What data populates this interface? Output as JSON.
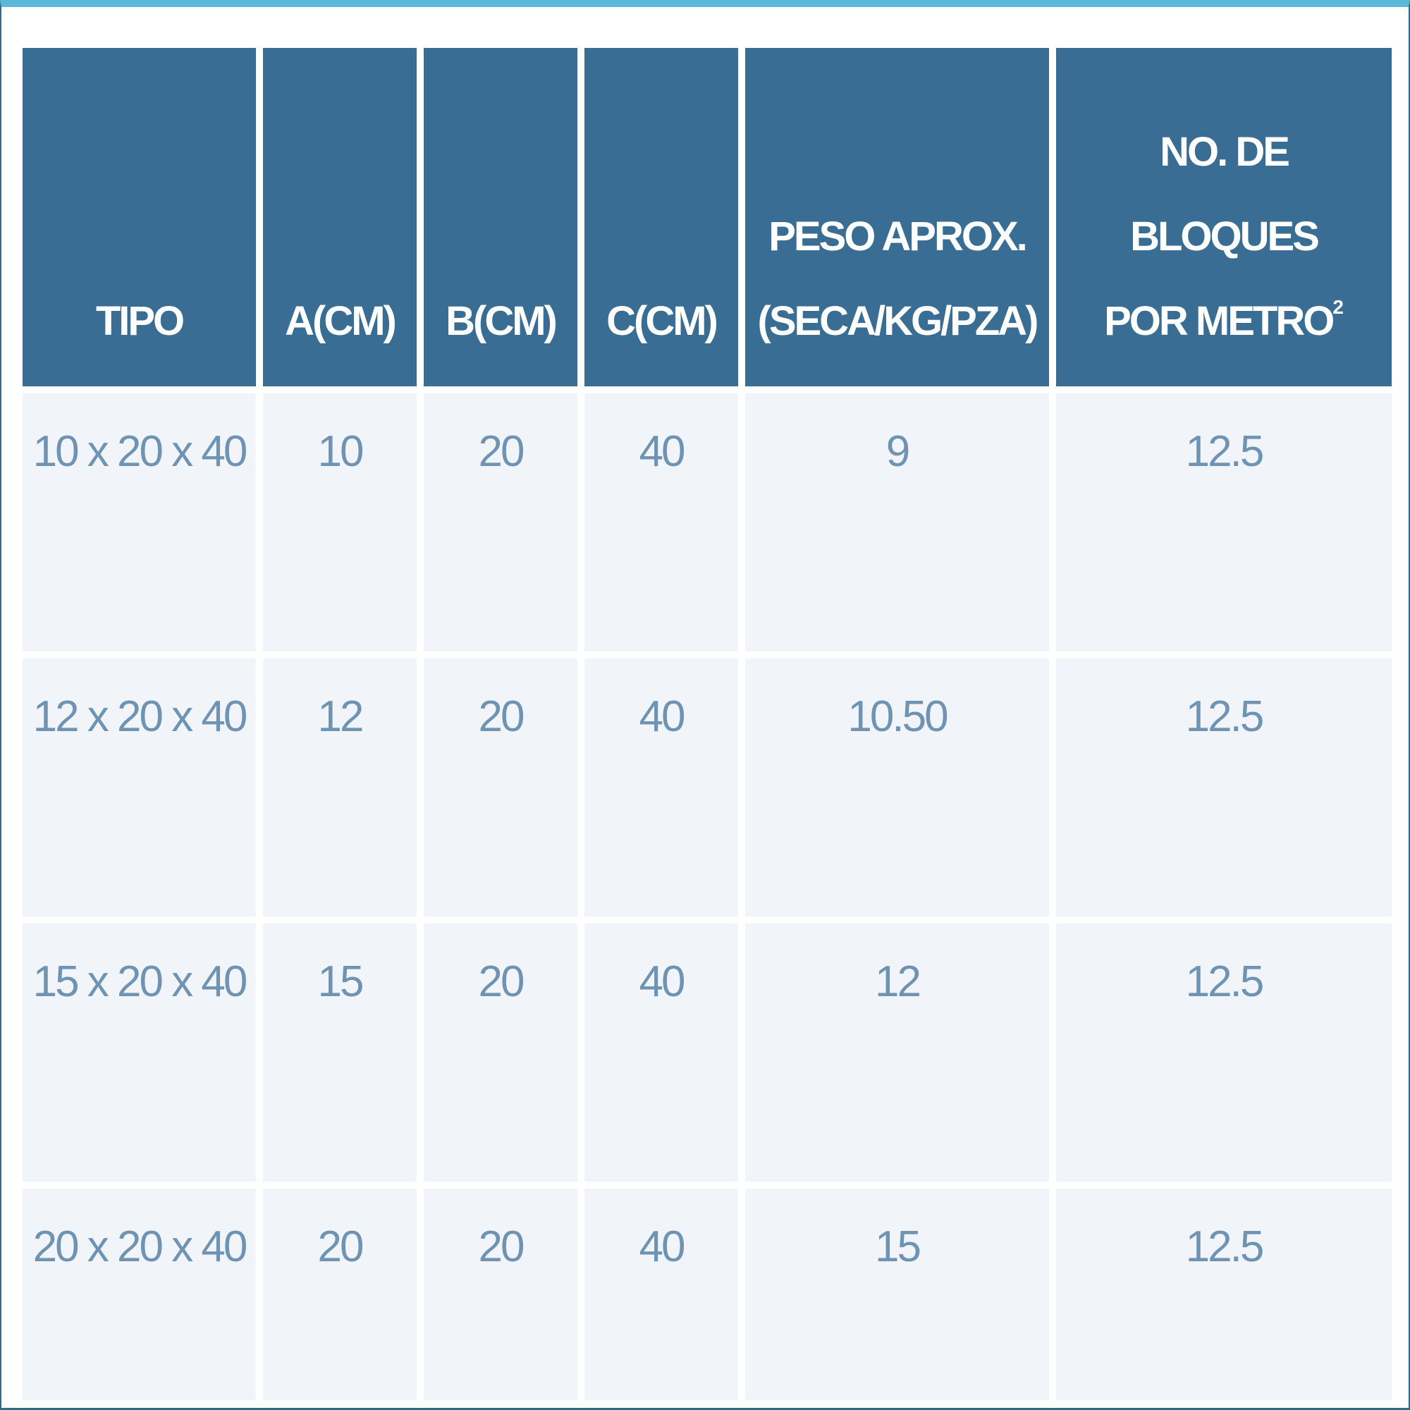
{
  "table": {
    "headers": {
      "tipo": "TIPO",
      "a": "A(CM)",
      "b": "B(CM)",
      "c": "C(CM)",
      "peso_line1": "PESO APROX.",
      "peso_line2": "(SECA/KG/PZA)",
      "bloques_line1": "NO. DE",
      "bloques_line2": "BLOQUES",
      "bloques_line3": "POR METRO",
      "bloques_sup": "2"
    },
    "rows": [
      {
        "tipo": "10 x 20 x 40",
        "a": "10",
        "b": "20",
        "c": "40",
        "peso": "9",
        "bloques": "12.5"
      },
      {
        "tipo": "12 x 20 x 40",
        "a": "12",
        "b": "20",
        "c": "40",
        "peso": "10.50",
        "bloques": "12.5"
      },
      {
        "tipo": "15 x 20 x 40",
        "a": "15",
        "b": "20",
        "c": "40",
        "peso": "12",
        "bloques": "12.5"
      },
      {
        "tipo": "20 x 20 x 40",
        "a": "20",
        "b": "20",
        "c": "40",
        "peso": "15",
        "bloques": "12.5"
      }
    ]
  },
  "colors": {
    "header_bg": "#396d94",
    "header_text": "#ffffff",
    "cell_bg": "#f1f5f9",
    "cell_text": "#6f93b2",
    "top_accent": "#5ab8d9"
  }
}
